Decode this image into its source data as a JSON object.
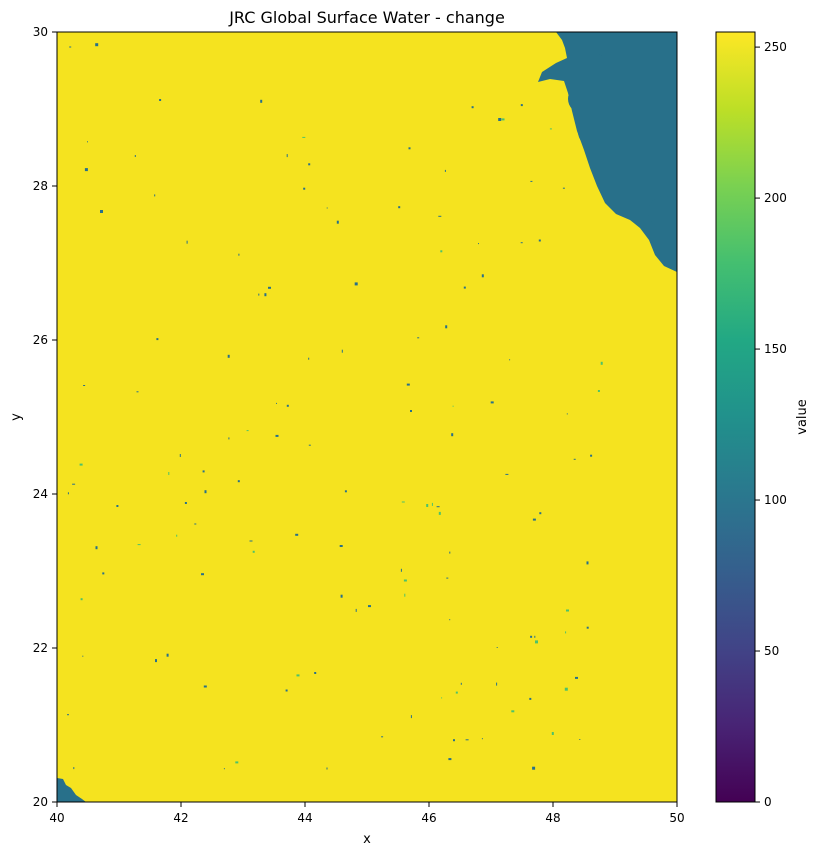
{
  "chart_data": {
    "type": "heatmap",
    "title": "JRC Global Surface Water - change",
    "xlabel": "x",
    "ylabel": "y",
    "xlim": [
      40,
      50
    ],
    "ylim": [
      20,
      30
    ],
    "x_ticks": [
      40,
      42,
      44,
      46,
      48,
      50
    ],
    "y_ticks": [
      20,
      22,
      24,
      26,
      28,
      30
    ],
    "colorbar": {
      "label": "value",
      "colormap": "viridis",
      "range": [
        0,
        255
      ],
      "ticks": [
        0,
        50,
        100,
        150,
        200,
        250
      ]
    },
    "dominant_value": 255,
    "water_value": 100,
    "grid": false,
    "colors": {
      "dominant": "#f5e31f",
      "water": "#28708a",
      "speckle": "#4cc26a"
    }
  }
}
